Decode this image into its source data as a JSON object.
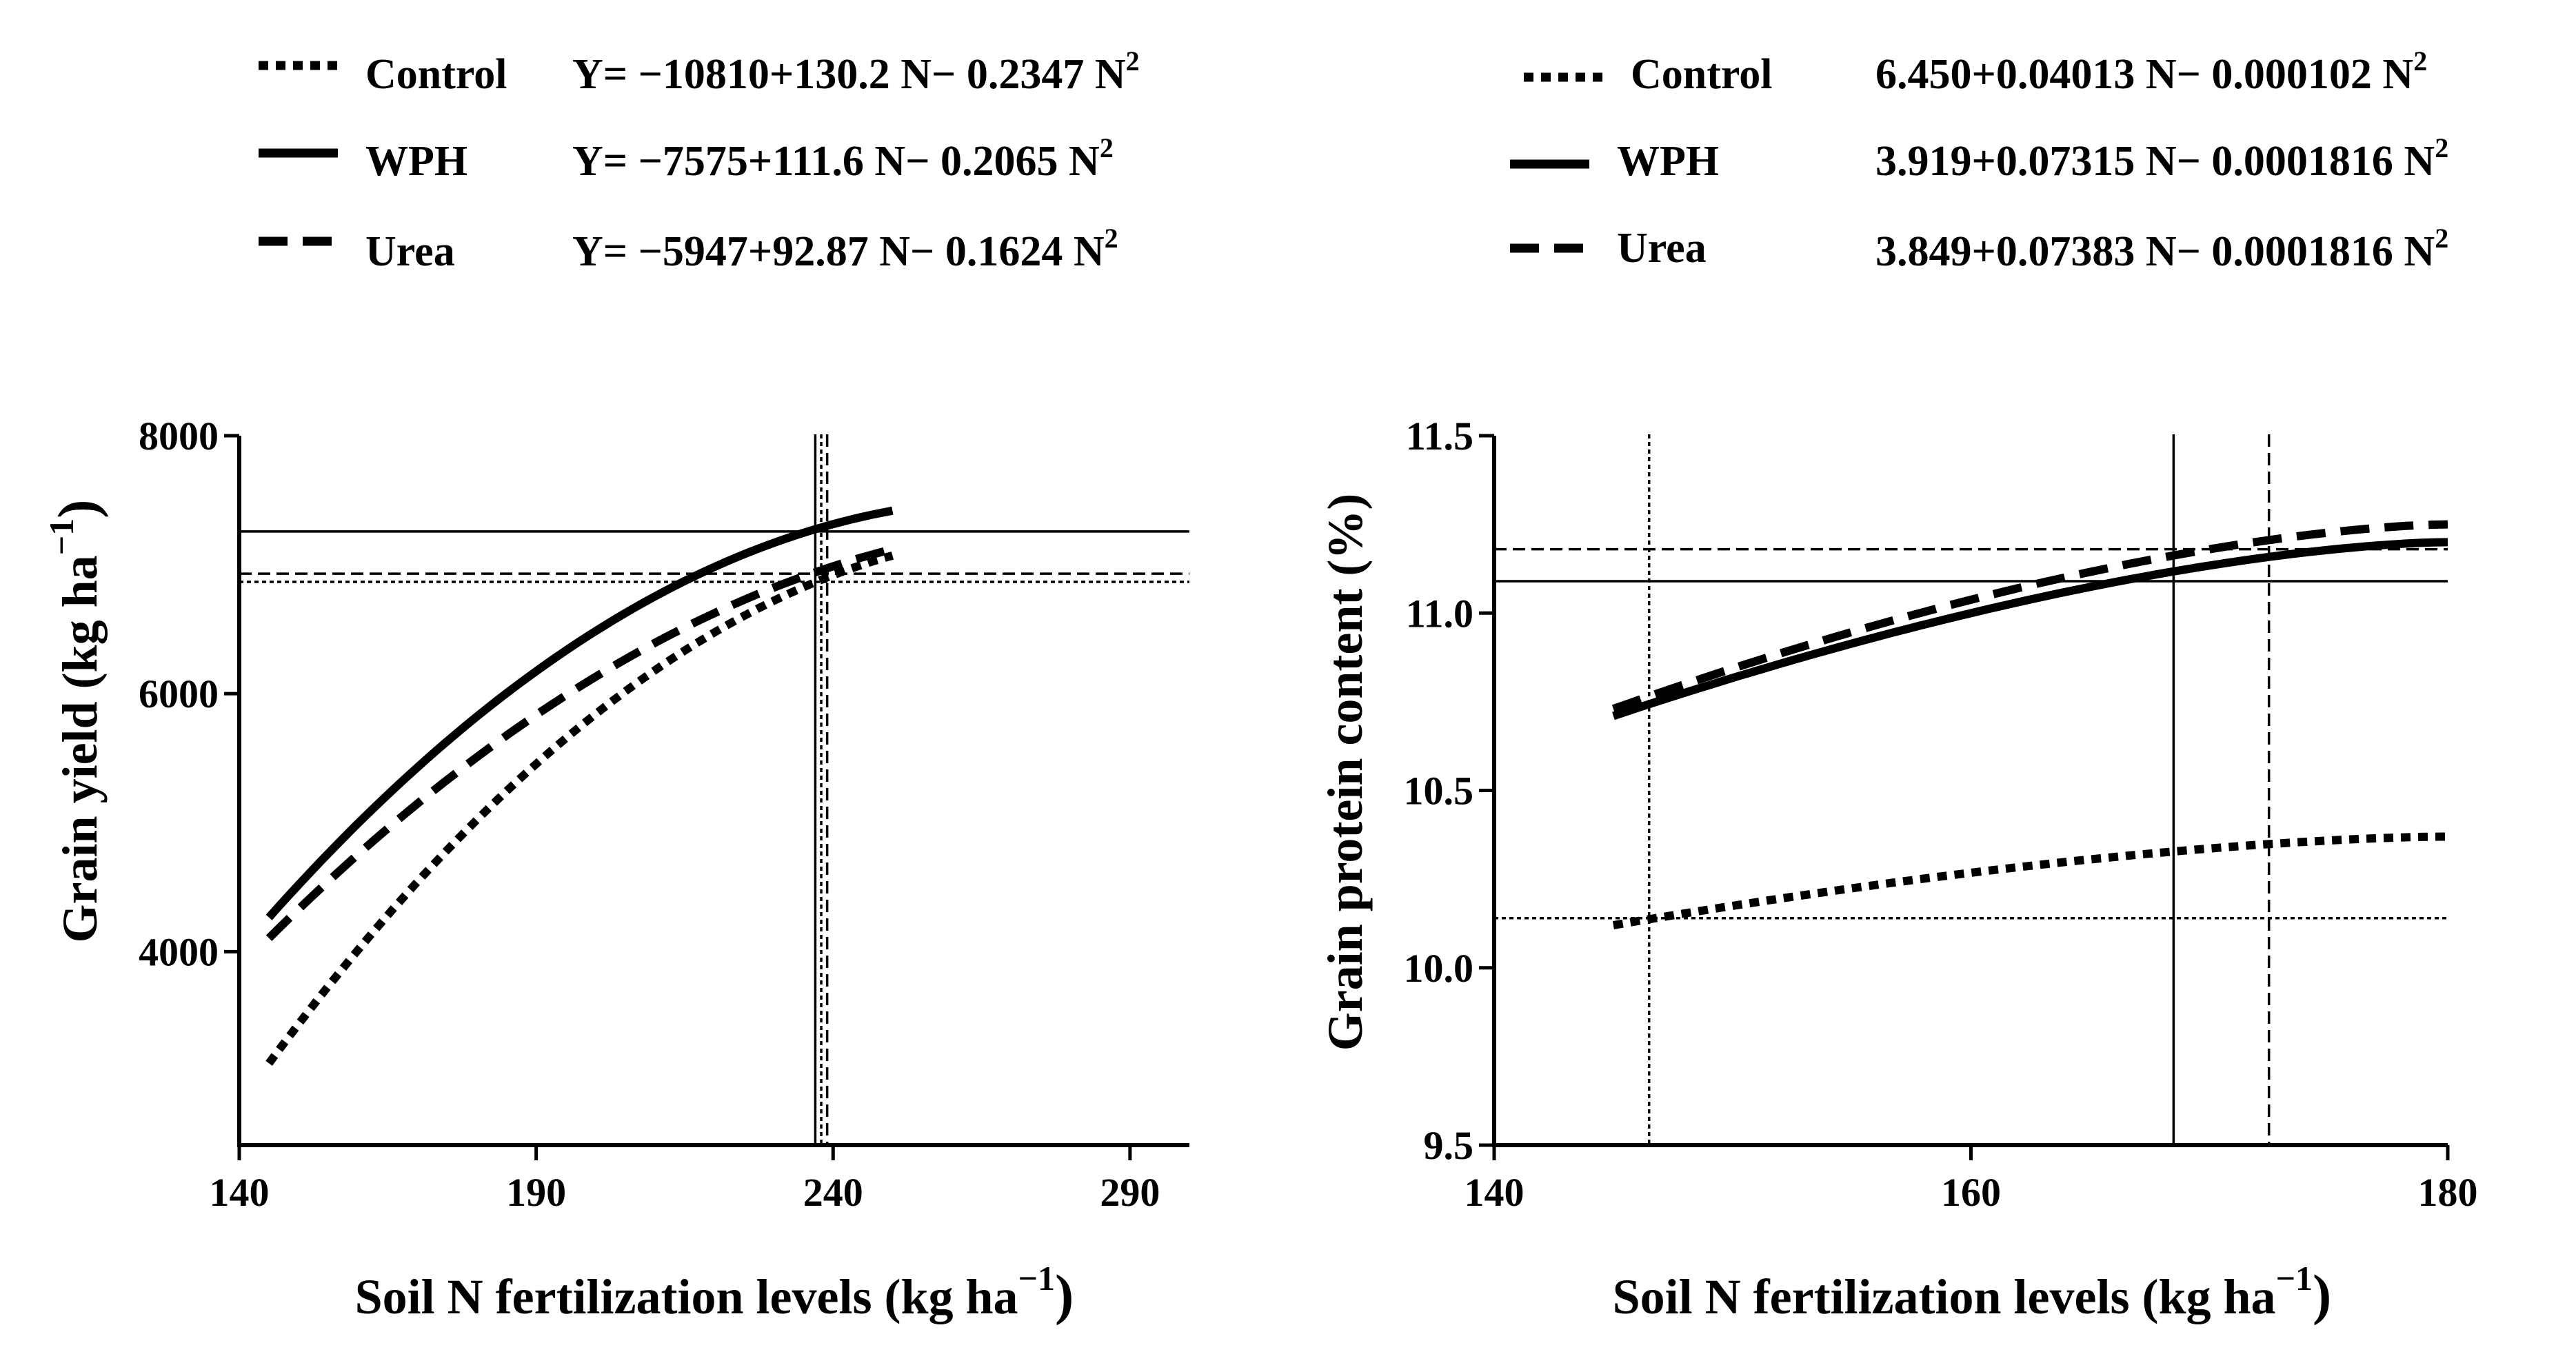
{
  "chart_data": [
    {
      "type": "line",
      "title": "",
      "xlabel": "Soil N fertilization levels (kg ha",
      "xlabel_sup": "−1",
      "xlabel_close": ")",
      "ylabel": "Grain yield (kg ha",
      "ylabel_sup": "−1",
      "ylabel_close": ")",
      "xlim": [
        140,
        300
      ],
      "ylim": [
        2500,
        8000
      ],
      "xticks": [
        140,
        190,
        240,
        290
      ],
      "xtick_labels": [
        "140",
        "190",
        "240",
        "290"
      ],
      "yticks": [
        4000,
        6000,
        8000
      ],
      "ytick_labels": [
        "4000",
        "6000",
        "8000"
      ],
      "grid": false,
      "legend_position": "top",
      "series": [
        {
          "name": "Control",
          "style": "dotted",
          "equation": "Y= −10810+130.2 N− 0.2347 N",
          "equation_sup": "2",
          "a": -10810,
          "b": 130.2,
          "c": -0.2347,
          "x_range": [
            145,
            250
          ],
          "optimum_x": 238,
          "optimum_y": 6867
        },
        {
          "name": "WPH",
          "style": "solid",
          "equation": "Y= −7575+111.6 N− 0.2065 N",
          "equation_sup": "2",
          "a": -7575,
          "b": 111.6,
          "c": -0.2065,
          "x_range": [
            145,
            250
          ],
          "optimum_x": 237,
          "optimum_y": 7258
        },
        {
          "name": "Urea",
          "style": "dashed",
          "equation": "Y= −5947+92.87 N− 0.1624 N",
          "equation_sup": "2",
          "a": -5947,
          "b": 92.87,
          "c": -0.1624,
          "x_range": [
            145,
            250
          ],
          "optimum_x": 239,
          "optimum_y": 6930
        }
      ]
    },
    {
      "type": "line",
      "title": "",
      "xlabel": "Soil N fertilization levels (kg ha",
      "xlabel_sup": "−1",
      "xlabel_close": ")",
      "ylabel": "Grain protein content (%)",
      "xlim": [
        140,
        180
      ],
      "ylim": [
        9.5,
        11.5
      ],
      "xticks": [
        140,
        160,
        180
      ],
      "xtick_labels": [
        "140",
        "160",
        "180"
      ],
      "yticks": [
        9.5,
        10.0,
        10.5,
        11.0,
        11.5
      ],
      "ytick_labels": [
        "9.5",
        "10.0",
        "10.5",
        "11.0",
        "11.5"
      ],
      "grid": false,
      "legend_position": "top",
      "series": [
        {
          "name": "Control",
          "style": "dotted",
          "equation": "6.450+0.04013 N− 0.000102 N",
          "equation_sup": "2",
          "x_range": [
            145,
            180
          ],
          "y_start": 10.12,
          "y_end": 10.37,
          "optimum_x": 146.5,
          "optimum_y": 10.14
        },
        {
          "name": "WPH",
          "style": "solid",
          "equation": "3.919+0.07315 N− 0.0001816 N",
          "equation_sup": "2",
          "x_range": [
            145,
            180
          ],
          "y_start": 10.71,
          "y_end": 11.2,
          "optimum_x": 168.5,
          "optimum_y": 11.09
        },
        {
          "name": "Urea",
          "style": "dashed",
          "equation": "3.849+0.07383 N− 0.0001816 N",
          "equation_sup": "2",
          "x_range": [
            145,
            180
          ],
          "y_start": 10.73,
          "y_end": 11.25,
          "optimum_x": 172.5,
          "optimum_y": 11.18
        }
      ]
    }
  ]
}
